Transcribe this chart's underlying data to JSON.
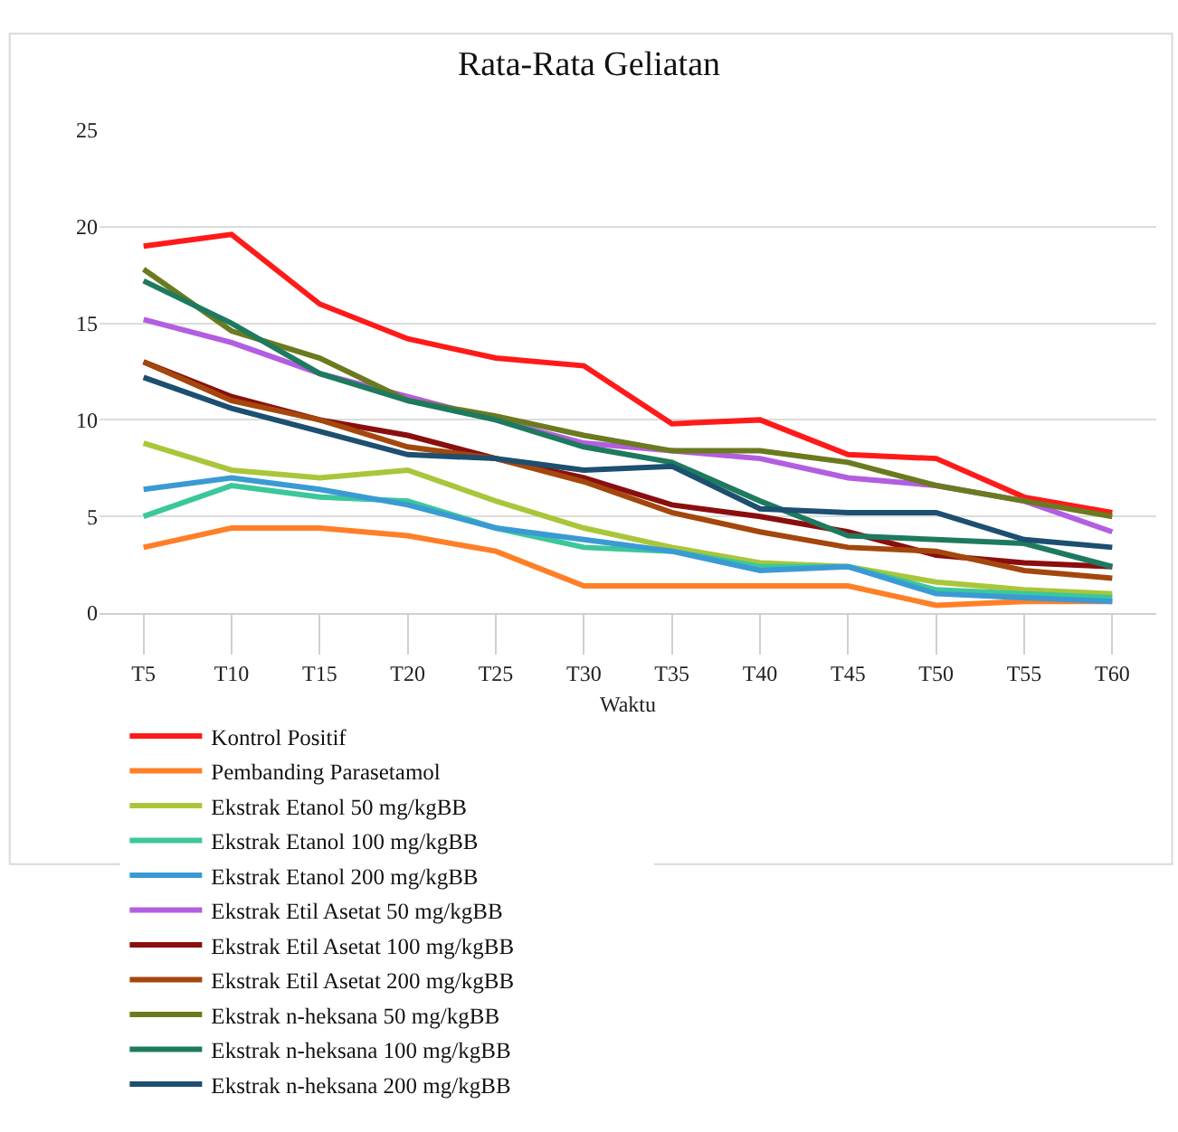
{
  "chart_data": {
    "type": "line",
    "title": "Rata-Rata Geliatan",
    "xlabel": "Waktu",
    "categories": [
      "T5",
      "T10",
      "T15",
      "T20",
      "T25",
      "T30",
      "T35",
      "T40",
      "T45",
      "T50",
      "T55",
      "T60"
    ],
    "ylim": [
      0,
      25
    ],
    "yticks": [
      0,
      5,
      10,
      15,
      20,
      25
    ],
    "grid": "y",
    "legend": "bottom",
    "marker": "none",
    "line_style": "solid",
    "series": [
      {
        "name": "Kontrol Positif",
        "color": "#ff1a1a",
        "values": [
          19.0,
          19.6,
          16.0,
          14.2,
          13.2,
          12.8,
          9.8,
          10.0,
          8.2,
          8.0,
          6.0,
          5.2
        ]
      },
      {
        "name": "Pembanding Parasetamol",
        "color": "#ff7f27",
        "values": [
          3.4,
          4.4,
          4.4,
          4.0,
          3.2,
          1.4,
          1.4,
          1.4,
          1.4,
          0.4,
          0.6,
          0.6
        ]
      },
      {
        "name": "Ekstrak Etanol 50 mg/kgBB",
        "color": "#a9c63b",
        "values": [
          8.8,
          7.4,
          7.0,
          7.4,
          5.8,
          4.4,
          3.4,
          2.6,
          2.4,
          1.6,
          1.2,
          1.0
        ]
      },
      {
        "name": "Ekstrak Etanol 100 mg/kgBB",
        "color": "#3cc79b",
        "values": [
          5.0,
          6.6,
          6.0,
          5.8,
          4.4,
          3.4,
          3.2,
          2.4,
          2.4,
          1.2,
          1.0,
          0.8
        ]
      },
      {
        "name": "Ekstrak Etanol 200 mg/kgBB",
        "color": "#3a9ad4",
        "values": [
          6.4,
          7.0,
          6.4,
          5.6,
          4.4,
          3.8,
          3.2,
          2.2,
          2.4,
          1.0,
          0.8,
          0.6
        ]
      },
      {
        "name": "Ekstrak Etil Asetat 50 mg/kgBB",
        "color": "#b35ee0",
        "values": [
          15.2,
          14.0,
          12.4,
          11.2,
          10.0,
          8.8,
          8.4,
          8.0,
          7.0,
          6.6,
          5.8,
          4.2
        ]
      },
      {
        "name": "Ekstrak Etil Asetat 100 mg/kgBB",
        "color": "#8b0e0e",
        "values": [
          13.0,
          11.2,
          10.0,
          9.2,
          8.0,
          7.0,
          5.6,
          5.0,
          4.2,
          3.0,
          2.6,
          2.4
        ]
      },
      {
        "name": "Ekstrak Etil Asetat 200 mg/kgBB",
        "color": "#a4470c",
        "values": [
          13.0,
          11.0,
          10.0,
          8.6,
          8.0,
          6.8,
          5.2,
          4.2,
          3.4,
          3.2,
          2.2,
          1.8
        ]
      },
      {
        "name": "Ekstrak n-heksana 50 mg/kgBB",
        "color": "#6b7a1f",
        "values": [
          17.8,
          14.6,
          13.2,
          11.0,
          10.2,
          9.2,
          8.4,
          8.4,
          7.8,
          6.6,
          5.8,
          5.0
        ]
      },
      {
        "name": "Ekstrak n-heksana 100 mg/kgBB",
        "color": "#1e7a5e",
        "values": [
          17.2,
          15.0,
          12.4,
          11.0,
          10.0,
          8.6,
          7.8,
          5.8,
          4.0,
          3.8,
          3.6,
          2.4
        ]
      },
      {
        "name": "Ekstrak n-heksana 200 mg/kgBB",
        "color": "#1c4f70",
        "values": [
          12.2,
          10.6,
          9.4,
          8.2,
          8.0,
          7.4,
          7.6,
          5.4,
          5.2,
          5.2,
          3.8,
          3.4
        ]
      }
    ]
  }
}
